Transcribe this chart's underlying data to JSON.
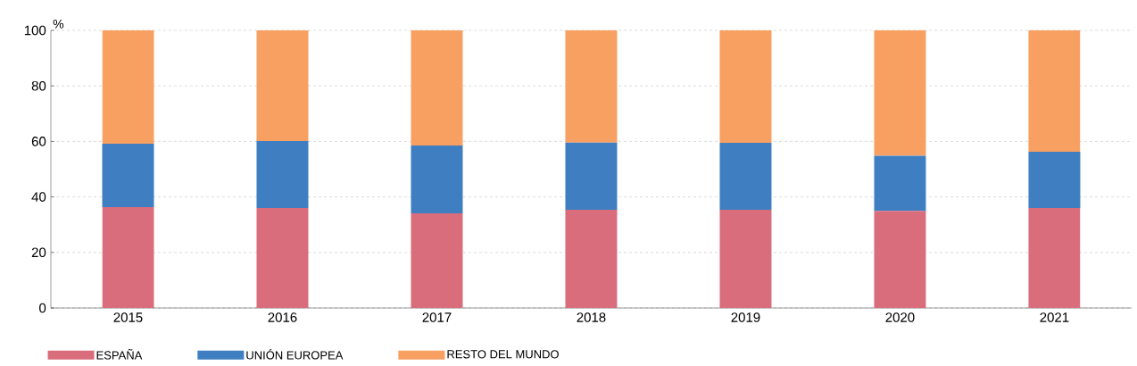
{
  "chart_data": {
    "type": "bar",
    "stacked": true,
    "ylabel": "%",
    "categories": [
      "2015",
      "2016",
      "2017",
      "2018",
      "2019",
      "2020",
      "2021"
    ],
    "series": [
      {
        "name": "ESPAÑA",
        "color": "#d96d7c",
        "values": [
          36.3,
          36.0,
          34.1,
          35.4,
          35.4,
          35.0,
          36.0
        ]
      },
      {
        "name": "UNIÓN EUROPEA",
        "color": "#3f7fc1",
        "values": [
          22.9,
          24.1,
          24.4,
          24.2,
          24.1,
          19.8,
          20.3
        ]
      },
      {
        "name": "RESTO DEL MUNDO",
        "color": "#f89f62",
        "values": [
          40.8,
          39.9,
          41.5,
          40.4,
          40.5,
          45.2,
          43.7
        ]
      }
    ],
    "ylim": [
      0,
      100
    ],
    "yticks": [
      0,
      20,
      40,
      60,
      80,
      100
    ],
    "grid": "y",
    "legend": "bottom left"
  }
}
